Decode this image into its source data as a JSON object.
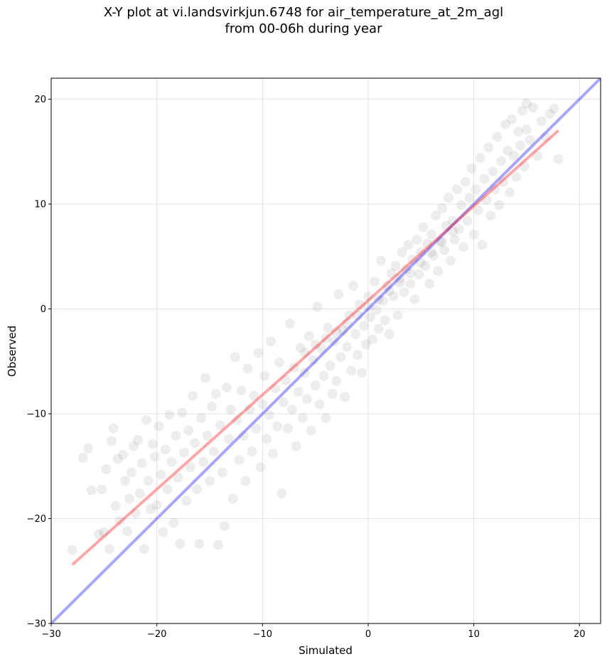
{
  "chart_data": {
    "type": "scatter",
    "title": "X-Y plot at vi.landsvirkjun.6748 for air_temperature_at_2m_agl",
    "subtitle": "from 00-06h during year",
    "xlabel": "Simulated",
    "ylabel": "Observed",
    "xlim": [
      -30,
      22
    ],
    "ylim": [
      -30,
      22
    ],
    "x_ticks": [
      -30,
      -20,
      -10,
      0,
      10,
      20
    ],
    "y_ticks": [
      -30,
      -20,
      -10,
      0,
      10,
      20
    ],
    "x_tick_labels": [
      "−30",
      "−20",
      "−10",
      "0",
      "10",
      "20"
    ],
    "y_tick_labels": [
      "−30",
      "−20",
      "−10",
      "0",
      "10",
      "20"
    ],
    "grid": true,
    "point_color": "#000000",
    "point_alpha": 0.07,
    "lines": [
      {
        "kind": "identity",
        "color": "#0000ff",
        "alpha": 0.35,
        "x": [
          -30,
          22
        ],
        "y": [
          -30,
          22
        ]
      },
      {
        "kind": "fit",
        "color": "#ff0000",
        "alpha": 0.35,
        "x": [
          -28,
          18
        ],
        "y": [
          -24.4,
          17
        ]
      }
    ],
    "points": [
      [
        -28,
        -23
      ],
      [
        -27,
        -14.2
      ],
      [
        -26.5,
        -13.3
      ],
      [
        -26.2,
        -17.3
      ],
      [
        -25.5,
        -21.5
      ],
      [
        -25.2,
        -17.2
      ],
      [
        -25,
        -21.3
      ],
      [
        -24.8,
        -15.3
      ],
      [
        -24.5,
        -22.9
      ],
      [
        -24.3,
        -12.6
      ],
      [
        -24.1,
        -11.4
      ],
      [
        -23.9,
        -18.8
      ],
      [
        -23.7,
        -14.3
      ],
      [
        -23.5,
        -20.2
      ],
      [
        -23.2,
        -13.9
      ],
      [
        -23,
        -16.4
      ],
      [
        -22.8,
        -21.2
      ],
      [
        -22.6,
        -18.1
      ],
      [
        -22.4,
        -15.6
      ],
      [
        -22.2,
        -13.1
      ],
      [
        -22,
        -19.5
      ],
      [
        -21.8,
        -12.5
      ],
      [
        -21.6,
        -17.6
      ],
      [
        -21.4,
        -14.7
      ],
      [
        -21.2,
        -22.9
      ],
      [
        -21,
        -10.6
      ],
      [
        -20.8,
        -16.4
      ],
      [
        -20.6,
        -19.1
      ],
      [
        -20.4,
        -12.9
      ],
      [
        -20.2,
        -14.1
      ],
      [
        -20,
        -18.7
      ],
      [
        -19.8,
        -11.2
      ],
      [
        -19.6,
        -15.8
      ],
      [
        -19.4,
        -21.3
      ],
      [
        -19.2,
        -13.4
      ],
      [
        -19,
        -17.2
      ],
      [
        -18.8,
        -10.1
      ],
      [
        -18.6,
        -14.6
      ],
      [
        -18.4,
        -20.4
      ],
      [
        -18.2,
        -12.1
      ],
      [
        -18,
        -16.1
      ],
      [
        -17.8,
        -22.4
      ],
      [
        -17.6,
        -9.9
      ],
      [
        -17.4,
        -13.7
      ],
      [
        -17.2,
        -18.3
      ],
      [
        -17,
        -11.6
      ],
      [
        -16.8,
        -15.1
      ],
      [
        -16.6,
        -8.3
      ],
      [
        -16.4,
        -12.8
      ],
      [
        -16.2,
        -17.2
      ],
      [
        -16,
        -22.4
      ],
      [
        -15.8,
        -10.4
      ],
      [
        -15.6,
        -14.6
      ],
      [
        -15.4,
        -6.6
      ],
      [
        -15.2,
        -12.1
      ],
      [
        -15,
        -16.4
      ],
      [
        -14.8,
        -9.3
      ],
      [
        -14.6,
        -13.6
      ],
      [
        -14.4,
        -8.1
      ],
      [
        -14.2,
        -22.5
      ],
      [
        -14,
        -11.1
      ],
      [
        -13.8,
        -15.6
      ],
      [
        -13.6,
        -20.7
      ],
      [
        -13.4,
        -7.5
      ],
      [
        -13.2,
        -12.4
      ],
      [
        -13,
        -9.6
      ],
      [
        -12.8,
        -18.1
      ],
      [
        -12.6,
        -4.6
      ],
      [
        -12.4,
        -10.6
      ],
      [
        -12.2,
        -14.4
      ],
      [
        -12,
        -7.8
      ],
      [
        -11.8,
        -12.1
      ],
      [
        -11.6,
        -16.4
      ],
      [
        -11.4,
        -5.7
      ],
      [
        -11.2,
        -9.6
      ],
      [
        -11,
        -13.6
      ],
      [
        -10.8,
        -8.3
      ],
      [
        -10.6,
        -11.4
      ],
      [
        -10.4,
        -4.2
      ],
      [
        -10.2,
        -15.1
      ],
      [
        -10,
        -9.1
      ],
      [
        -9.8,
        -6.4
      ],
      [
        -9.6,
        -12.4
      ],
      [
        -9.4,
        -10.1
      ],
      [
        -9.2,
        -3.1
      ],
      [
        -9,
        -13.8
      ],
      [
        -8.8,
        -7.6
      ],
      [
        -8.6,
        -11.2
      ],
      [
        -8.4,
        -5.1
      ],
      [
        -8.2,
        -17.6
      ],
      [
        -8,
        -8.9
      ],
      [
        -7.8,
        -6.8
      ],
      [
        -7.6,
        -11.4
      ],
      [
        -7.4,
        -1.4
      ],
      [
        -7.2,
        -9.6
      ],
      [
        -7,
        -5.6
      ],
      [
        -6.8,
        -13.1
      ],
      [
        -6.6,
        -7.9
      ],
      [
        -6.4,
        -3.7
      ],
      [
        -6.2,
        -10.4
      ],
      [
        -6,
        -6.1
      ],
      [
        -5.8,
        -8.6
      ],
      [
        -5.6,
        -2.6
      ],
      [
        -5.4,
        -11.6
      ],
      [
        -5.2,
        -4.9
      ],
      [
        -5,
        -7.3
      ],
      [
        -4.8,
        0.2
      ],
      [
        -4.6,
        -9.1
      ],
      [
        -4.4,
        -3.8
      ],
      [
        -4.2,
        -6.4
      ],
      [
        -4,
        -10.4
      ],
      [
        -3.8,
        -1.8
      ],
      [
        -3.6,
        -5.4
      ],
      [
        -3.4,
        -8.1
      ],
      [
        -3.2,
        -3.1
      ],
      [
        -3,
        -6.9
      ],
      [
        -2.8,
        1.4
      ],
      [
        -2.6,
        -4.6
      ],
      [
        -2.4,
        -2.1
      ],
      [
        -2.2,
        -8.4
      ],
      [
        -2,
        -3.6
      ],
      [
        -1.8,
        -0.6
      ],
      [
        -1.6,
        -5.9
      ],
      [
        -1.4,
        2.2
      ],
      [
        -1.2,
        -2.4
      ],
      [
        -1,
        -4.4
      ],
      [
        -0.8,
        0.4
      ],
      [
        -0.6,
        -6.1
      ],
      [
        -0.4,
        -1.6
      ],
      [
        -0.2,
        -3.4
      ],
      [
        0,
        1.2
      ],
      [
        0.2,
        -0.8
      ],
      [
        0.4,
        -2.9
      ],
      [
        0.6,
        2.6
      ],
      [
        0.8,
        -0.1
      ],
      [
        1,
        -1.9
      ],
      [
        1.2,
        4.6
      ],
      [
        1.4,
        0.8
      ],
      [
        1.6,
        -1.1
      ],
      [
        1.8,
        2.2
      ],
      [
        2,
        -2.4
      ],
      [
        2.2,
        3.4
      ],
      [
        2.4,
        1.2
      ],
      [
        2.6,
        4.1
      ],
      [
        2.8,
        -0.6
      ],
      [
        3,
        2.9
      ],
      [
        3.2,
        5.4
      ],
      [
        3.4,
        1.6
      ],
      [
        3.6,
        3.8
      ],
      [
        3.8,
        6.1
      ],
      [
        4,
        2.4
      ],
      [
        4.2,
        4.7
      ],
      [
        4.4,
        0.9
      ],
      [
        4.6,
        6.6
      ],
      [
        4.8,
        3.3
      ],
      [
        5,
        5.4
      ],
      [
        5.2,
        7.8
      ],
      [
        5.4,
        4.1
      ],
      [
        5.6,
        6.2
      ],
      [
        5.8,
        2.4
      ],
      [
        6,
        7.1
      ],
      [
        6.2,
        5.1
      ],
      [
        6.4,
        8.9
      ],
      [
        6.6,
        3.6
      ],
      [
        6.8,
        6.4
      ],
      [
        7,
        9.6
      ],
      [
        7.2,
        5.6
      ],
      [
        7.4,
        7.9
      ],
      [
        7.6,
        10.6
      ],
      [
        7.8,
        4.6
      ],
      [
        8,
        8.4
      ],
      [
        8.2,
        6.6
      ],
      [
        8.4,
        11.4
      ],
      [
        8.6,
        7.6
      ],
      [
        8.8,
        9.9
      ],
      [
        9,
        5.9
      ],
      [
        9.2,
        12.1
      ],
      [
        9.4,
        8.4
      ],
      [
        9.6,
        10.6
      ],
      [
        9.8,
        13.4
      ],
      [
        10,
        7.1
      ],
      [
        10.2,
        11.4
      ],
      [
        10.4,
        9.4
      ],
      [
        10.6,
        14.4
      ],
      [
        10.8,
        6.1
      ],
      [
        11,
        12.4
      ],
      [
        11.2,
        10.4
      ],
      [
        11.4,
        15.4
      ],
      [
        11.6,
        8.9
      ],
      [
        11.8,
        13.1
      ],
      [
        12,
        11.4
      ],
      [
        12.2,
        16.4
      ],
      [
        12.4,
        9.9
      ],
      [
        12.6,
        14.1
      ],
      [
        12.8,
        12.1
      ],
      [
        13,
        17.6
      ],
      [
        13.2,
        15.1
      ],
      [
        13.4,
        11.1
      ],
      [
        13.6,
        18.1
      ],
      [
        13.8,
        14.6
      ],
      [
        14,
        12.6
      ],
      [
        14.2,
        16.9
      ],
      [
        14.4,
        15.6
      ],
      [
        14.6,
        18.9
      ],
      [
        14.8,
        13.6
      ],
      [
        15,
        17.1
      ],
      [
        15.3,
        16.1
      ],
      [
        15.6,
        19.2
      ],
      [
        16,
        14.6
      ],
      [
        16.4,
        17.9
      ],
      [
        16.8,
        16.4
      ],
      [
        17.2,
        18.6
      ],
      [
        17.6,
        19.1
      ],
      [
        18,
        14.3
      ],
      [
        15,
        19.6
      ],
      [
        -6,
        -4.2
      ],
      [
        -5,
        -3.4
      ],
      [
        -4,
        -2.8
      ],
      [
        -3,
        -2.2
      ],
      [
        -2,
        -1.4
      ],
      [
        -1,
        -0.6
      ],
      [
        0,
        0.2
      ],
      [
        1,
        0.9
      ],
      [
        2,
        1.7
      ],
      [
        3,
        2.5
      ],
      [
        4,
        3.4
      ],
      [
        5,
        4.4
      ],
      [
        6,
        5.4
      ],
      [
        7,
        6.4
      ],
      [
        8,
        7.4
      ]
    ]
  }
}
